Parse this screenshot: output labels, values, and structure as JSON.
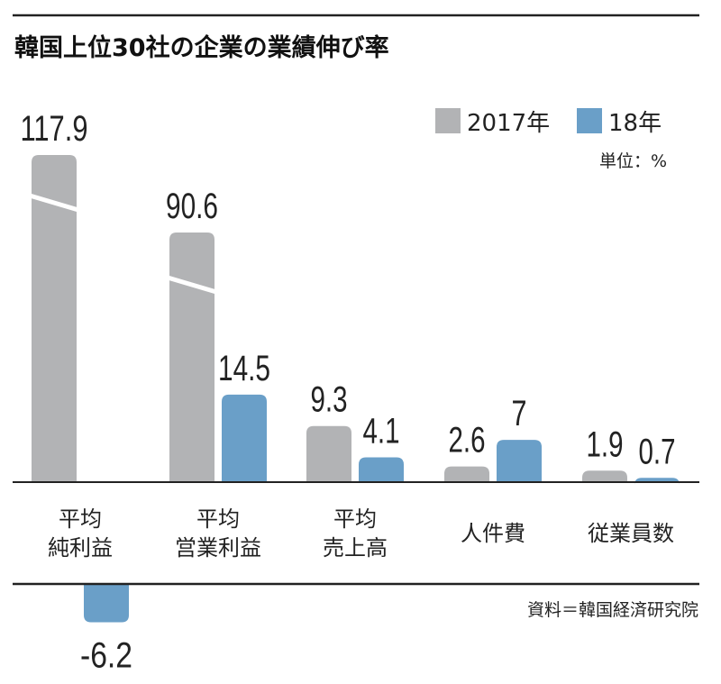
{
  "chart_data": {
    "type": "bar",
    "title": "韓国上位30社の企業の業績伸び率",
    "unit_label": "単位：%",
    "source": "資料＝韓国経済研究院",
    "categories": [
      [
        "平均",
        "純利益"
      ],
      [
        "平均",
        "営業利益"
      ],
      [
        "平均",
        "売上高"
      ],
      [
        "人件費"
      ],
      [
        "従業員数"
      ]
    ],
    "series": [
      {
        "name": "2017年",
        "color": "#b2b3b5",
        "values": [
          117.9,
          90.6,
          9.3,
          2.6,
          1.9
        ],
        "labels": [
          "117.9",
          "90.6",
          "9.3",
          "2.6",
          "1.9"
        ]
      },
      {
        "name": "18年",
        "color": "#6a9fc8",
        "values": [
          -6.2,
          14.5,
          4.1,
          7,
          0.7
        ],
        "labels": [
          "-6.2",
          "14.5",
          "4.1",
          "7",
          "0.7"
        ]
      }
    ],
    "legend_position": "top-right",
    "broken_axis_bars": [
      "117.9",
      "90.6"
    ],
    "grid": false
  }
}
